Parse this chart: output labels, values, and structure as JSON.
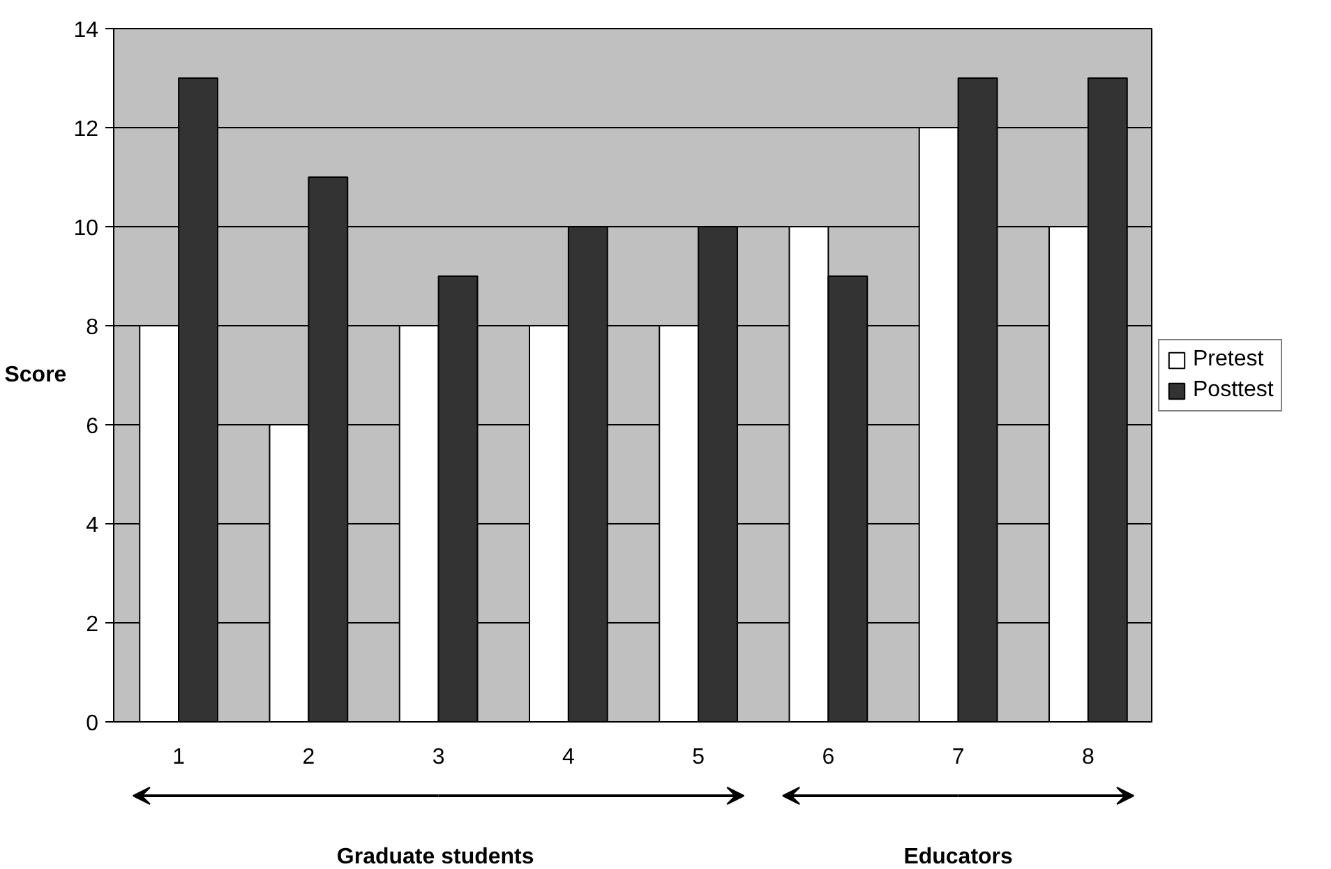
{
  "chart_data": {
    "type": "bar",
    "ylabel": "Score",
    "categories": [
      "1",
      "2",
      "3",
      "4",
      "5",
      "6",
      "7",
      "8"
    ],
    "series": [
      {
        "name": "Pretest",
        "color": "#ffffff",
        "values": [
          8,
          6,
          8,
          8,
          8,
          10,
          12,
          10
        ]
      },
      {
        "name": "Posttest",
        "color": "#333333",
        "values": [
          13,
          11,
          9,
          10,
          10,
          9,
          13,
          13
        ]
      }
    ],
    "ylim": [
      0,
      14
    ],
    "yticks": [
      0,
      2,
      4,
      6,
      8,
      10,
      12,
      14
    ],
    "grid": "y",
    "legend": "right",
    "annotations": [
      "Graduate  students",
      "Educators"
    ]
  }
}
